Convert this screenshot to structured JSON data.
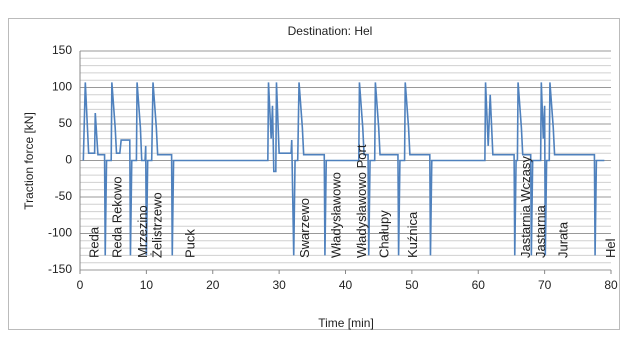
{
  "chart_data": {
    "type": "line",
    "title": "Destination: Hel",
    "xlabel": "Time [min]",
    "ylabel": "Traction force [kN]",
    "xlim": [
      0,
      80
    ],
    "xticks": [
      0,
      10,
      20,
      30,
      40,
      50,
      60,
      70,
      80
    ],
    "ylim": [
      -150,
      150
    ],
    "yticks": [
      -150,
      -100,
      -50,
      0,
      50,
      100,
      150
    ],
    "y_minor_ticks": [
      -140,
      -130,
      -120,
      -110,
      -90,
      -80,
      -70,
      -60,
      -40,
      -30,
      -20,
      -10,
      10,
      20,
      30,
      40,
      60,
      70,
      80,
      90,
      110,
      120,
      130,
      140
    ],
    "grid": true,
    "series": [
      {
        "color": "#4f81bd",
        "x": [
          0.5,
          0.8,
          1.3,
          2.2,
          2.3,
          2.7,
          3.7,
          3.8,
          4.0,
          4.7,
          4.8,
          5.3,
          5.5,
          6.0,
          6.2,
          7.5,
          7.6,
          7.8,
          8.5,
          8.6,
          9.1,
          9.3,
          9.8,
          9.9,
          10.0,
          10.2,
          10.8,
          11.0,
          11.5,
          11.7,
          13.8,
          13.9,
          14.1,
          28.3,
          28.4,
          28.8,
          29.0,
          29.2,
          29.5,
          29.6,
          30.0,
          31.8,
          31.9,
          32.2,
          32.4,
          32.8,
          33.0,
          33.5,
          33.7,
          36.8,
          36.9,
          37.1,
          42.0,
          42.1,
          42.6,
          42.8,
          43.4,
          43.5,
          43.7,
          44.4,
          44.5,
          45.0,
          45.2,
          47.9,
          48.0,
          48.2,
          48.9,
          49.0,
          49.5,
          49.7,
          52.7,
          52.8,
          53.0,
          61.0,
          61.1,
          61.5,
          61.8,
          62.2,
          62.4,
          65.4,
          65.5,
          65.7,
          65.9,
          66.0,
          66.5,
          66.7,
          67.9,
          68.0,
          68.2,
          69.4,
          69.5,
          69.8,
          70.0,
          70.1,
          70.3,
          70.7,
          70.8,
          71.3,
          71.5,
          77.5,
          77.6,
          77.8,
          79.0
        ],
        "values": [
          0,
          107,
          10,
          10,
          65,
          8,
          8,
          -130,
          0,
          0,
          107,
          45,
          10,
          10,
          28,
          28,
          -130,
          0,
          0,
          107,
          45,
          0,
          0,
          20,
          -130,
          0,
          0,
          107,
          45,
          8,
          8,
          -130,
          0,
          0,
          107,
          30,
          75,
          -15,
          -15,
          107,
          10,
          10,
          28,
          -130,
          0,
          0,
          107,
          45,
          8,
          8,
          -130,
          0,
          0,
          107,
          45,
          8,
          8,
          -130,
          0,
          0,
          107,
          45,
          8,
          8,
          -130,
          0,
          0,
          107,
          45,
          8,
          8,
          -130,
          0,
          0,
          107,
          20,
          90,
          8,
          8,
          8,
          -130,
          0,
          0,
          107,
          45,
          8,
          8,
          -130,
          0,
          0,
          107,
          30,
          75,
          -130,
          0,
          0,
          107,
          45,
          8,
          8,
          -130,
          0,
          0
        ]
      }
    ],
    "annotations": [
      {
        "text": "Reda",
        "x": 1.5
      },
      {
        "text": "Reda Rekowo",
        "x": 5.0
      },
      {
        "text": "Mrzezino",
        "x": 8.8
      },
      {
        "text": "Żelistrzewo",
        "x": 11.0
      },
      {
        "text": "Puck",
        "x": 16.0
      },
      {
        "text": "Swarzewo",
        "x": 33.2
      },
      {
        "text": "Władysławowo",
        "x": 38.0
      },
      {
        "text": "Władysławowo Port",
        "x": 41.8
      },
      {
        "text": "Chałupy",
        "x": 45.2
      },
      {
        "text": "Kuźnica",
        "x": 49.5
      },
      {
        "text": "Jastarnia Wczasy",
        "x": 66.5
      },
      {
        "text": "Jastarnia",
        "x": 68.8
      },
      {
        "text": "Jurata",
        "x": 72.2
      },
      {
        "text": "Hel",
        "x": 79.3
      }
    ]
  }
}
